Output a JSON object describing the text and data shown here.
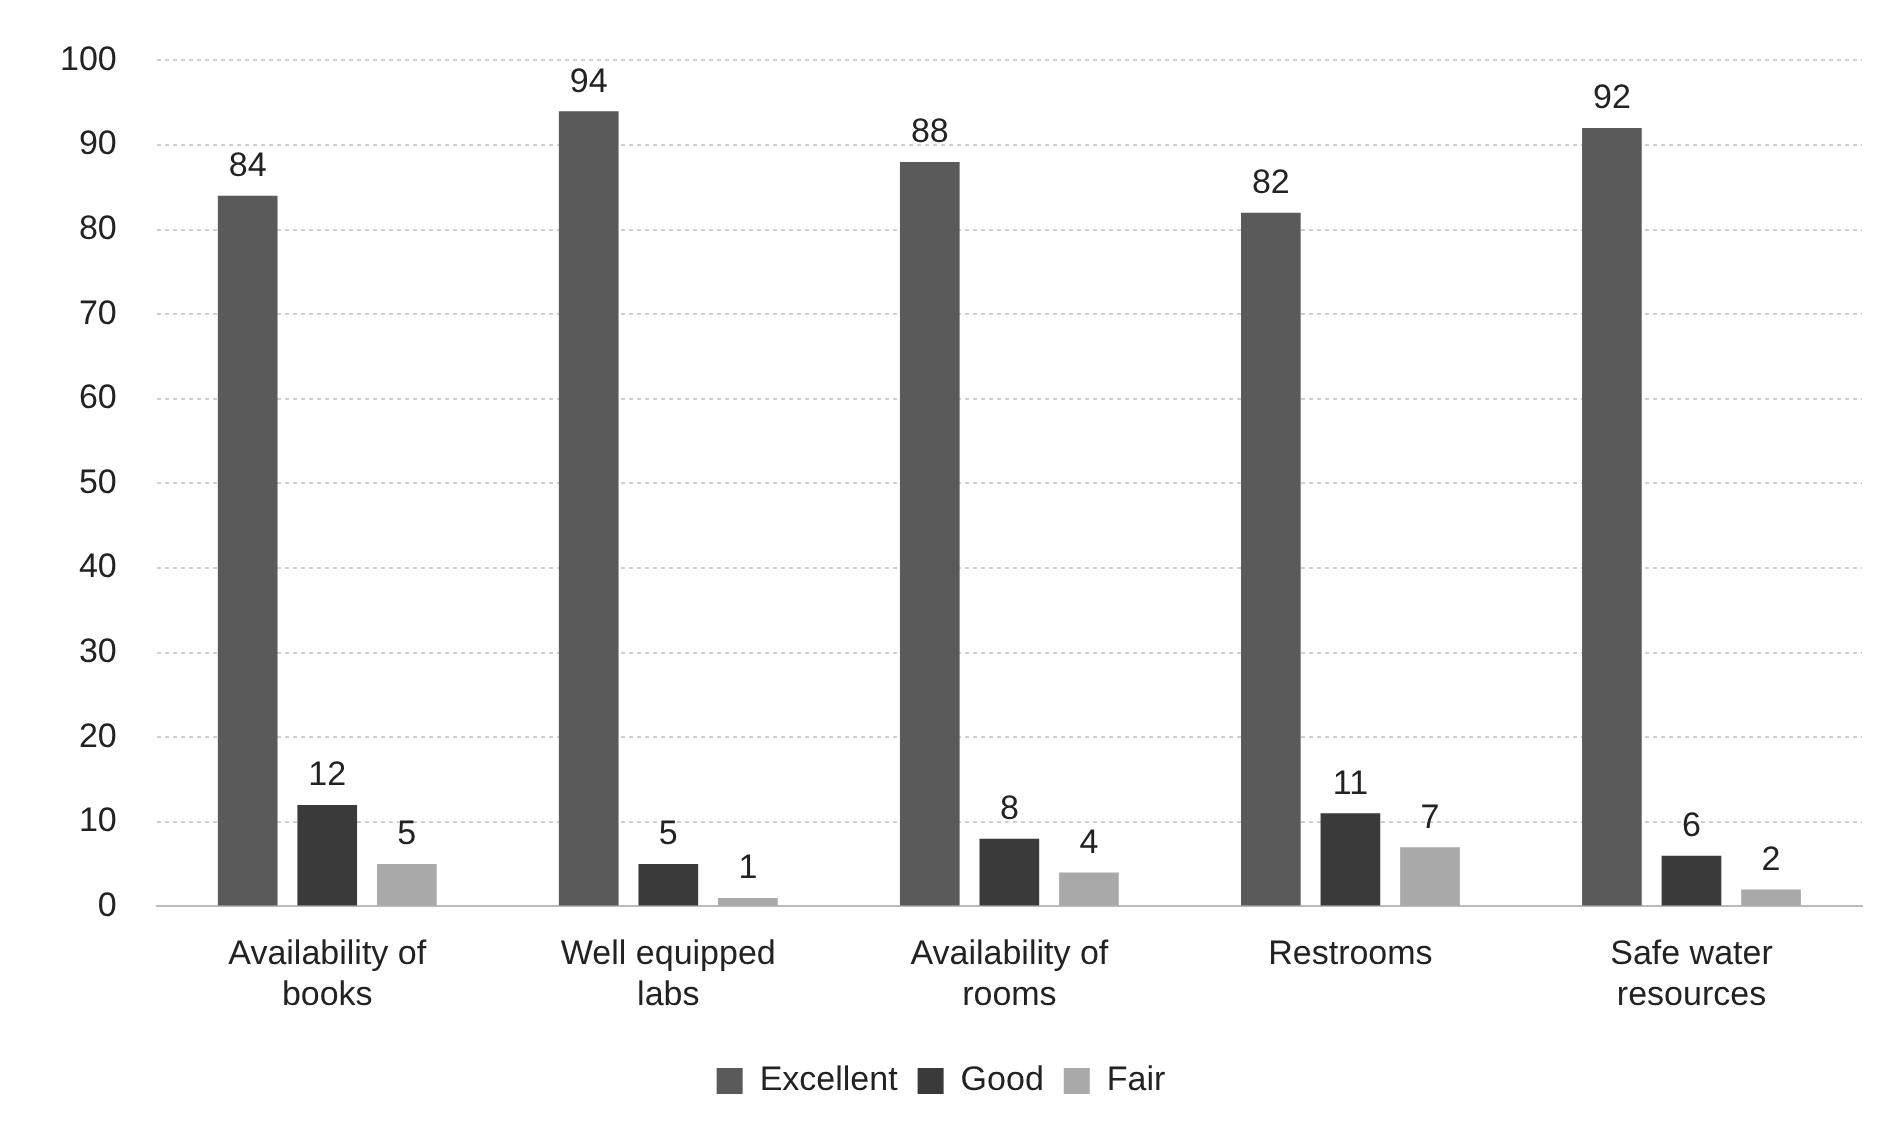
{
  "chart_data": {
    "type": "bar",
    "categories": [
      "Availability of books",
      "Well equipped labs",
      "Availability of rooms",
      "Restrooms",
      "Safe water resources"
    ],
    "series": [
      {
        "name": "Excellent",
        "color": "#5a5a5a",
        "values": [
          84,
          94,
          88,
          82,
          92
        ]
      },
      {
        "name": "Good",
        "color": "#3a3a3a",
        "values": [
          12,
          5,
          8,
          11,
          6
        ]
      },
      {
        "name": "Fair",
        "color": "#a9a9a9",
        "values": [
          5,
          1,
          4,
          7,
          2
        ]
      }
    ],
    "ylim": [
      0,
      100
    ],
    "yticks": [
      0,
      10,
      20,
      30,
      40,
      50,
      60,
      70,
      80,
      90,
      100
    ],
    "grid": "y",
    "legend": "bottom",
    "data_labels": true
  }
}
